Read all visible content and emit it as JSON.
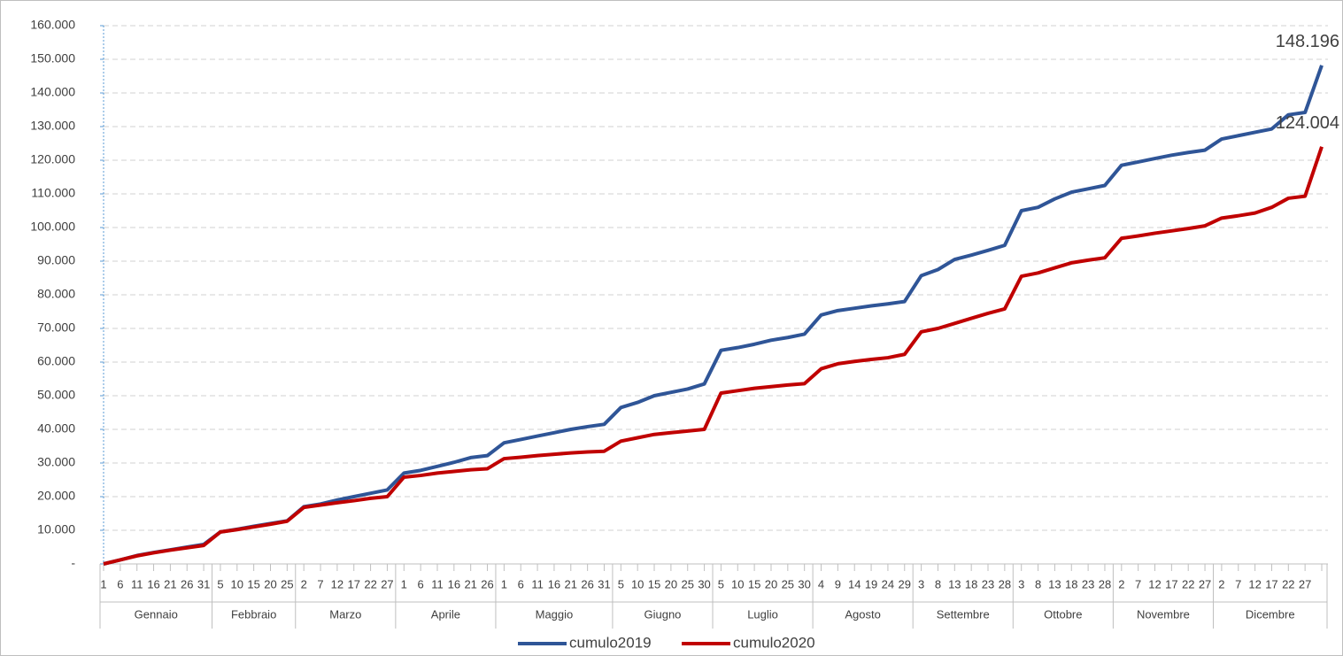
{
  "chart_data": {
    "type": "line",
    "months": [
      "Gennaio",
      "Febbraio",
      "Marzo",
      "Aprile",
      "Maggio",
      "Giugno",
      "Luglio",
      "Agosto",
      "Settembre",
      "Ottobre",
      "Novembre",
      "Dicembre"
    ],
    "categories": [
      "1",
      "6",
      "11",
      "16",
      "21",
      "26",
      "31",
      "5",
      "10",
      "15",
      "20",
      "25",
      "2",
      "7",
      "12",
      "17",
      "22",
      "27",
      "1",
      "6",
      "11",
      "16",
      "21",
      "26",
      "1",
      "6",
      "11",
      "16",
      "21",
      "26",
      "31",
      "5",
      "10",
      "15",
      "20",
      "25",
      "30",
      "5",
      "10",
      "15",
      "20",
      "25",
      "30",
      "4",
      "9",
      "14",
      "19",
      "24",
      "29",
      "3",
      "8",
      "13",
      "18",
      "23",
      "28",
      "3",
      "8",
      "13",
      "18",
      "23",
      "28",
      "2",
      "7",
      "12",
      "17",
      "22",
      "27",
      "2",
      "7",
      "12",
      "17",
      "22",
      "27",
      null
    ],
    "series": [
      {
        "name": "cumulo2019",
        "color": "#2f5597",
        "values": [
          0,
          1200,
          2500,
          3400,
          4200,
          5000,
          5800,
          9500,
          10300,
          11200,
          12000,
          12800,
          17000,
          17800,
          19000,
          20000,
          21000,
          22000,
          27000,
          27800,
          29000,
          30200,
          31600,
          32200,
          36000,
          37000,
          38000,
          39000,
          40000,
          40800,
          41500,
          46500,
          48000,
          50000,
          51000,
          52000,
          53500,
          63500,
          64300,
          65300,
          66500,
          67300,
          68300,
          74000,
          75300,
          76000,
          76700,
          77300,
          78000,
          85700,
          87500,
          90500,
          91800,
          93200,
          94700,
          105000,
          106000,
          108500,
          110500,
          111500,
          112500,
          118500,
          119500,
          120500,
          121500,
          122300,
          123000,
          126300,
          127300,
          128300,
          129300,
          133500,
          134200,
          148196
        ],
        "value_labels": [
          null,
          null,
          null,
          null,
          null,
          null,
          null,
          null,
          null,
          null,
          null,
          null,
          null,
          null,
          null,
          null,
          null,
          null,
          null,
          null,
          null,
          null,
          null,
          null,
          null,
          null,
          null,
          null,
          null,
          null,
          null,
          null,
          null,
          null,
          null,
          null,
          null,
          null,
          null,
          null,
          null,
          null,
          null,
          null,
          null,
          null,
          null,
          null,
          null,
          null,
          null,
          null,
          null,
          null,
          null,
          null,
          null,
          null,
          null,
          null,
          null,
          null,
          null,
          null,
          null,
          null,
          null,
          null,
          null,
          null,
          null,
          null,
          null,
          "148.196"
        ]
      },
      {
        "name": "cumulo2020",
        "color": "#c00000",
        "values": [
          0,
          1200,
          2400,
          3300,
          4100,
          4800,
          5500,
          9500,
          10200,
          11000,
          11800,
          12700,
          16800,
          17500,
          18200,
          18800,
          19500,
          20000,
          25800,
          26300,
          27000,
          27500,
          28000,
          28300,
          31300,
          31700,
          32200,
          32600,
          33000,
          33300,
          33500,
          36500,
          37500,
          38500,
          39000,
          39500,
          40000,
          50800,
          51500,
          52200,
          52700,
          53200,
          53600,
          58000,
          59500,
          60200,
          60800,
          61300,
          62300,
          69000,
          70000,
          71500,
          73000,
          74500,
          75800,
          85500,
          86500,
          88000,
          89500,
          90300,
          91000,
          96800,
          97500,
          98300,
          99000,
          99700,
          100500,
          102800,
          103500,
          104300,
          106000,
          108700,
          109300,
          124004
        ],
        "value_labels": [
          null,
          null,
          null,
          null,
          null,
          null,
          null,
          null,
          null,
          null,
          null,
          null,
          null,
          null,
          null,
          null,
          null,
          null,
          null,
          null,
          null,
          null,
          null,
          null,
          null,
          null,
          null,
          null,
          null,
          null,
          null,
          null,
          null,
          null,
          null,
          null,
          null,
          null,
          null,
          null,
          null,
          null,
          null,
          null,
          null,
          null,
          null,
          null,
          null,
          null,
          null,
          null,
          null,
          null,
          null,
          null,
          null,
          null,
          null,
          null,
          null,
          null,
          null,
          null,
          null,
          null,
          null,
          null,
          null,
          null,
          null,
          null,
          null,
          "124.004"
        ]
      }
    ],
    "ylim": [
      0,
      160000
    ],
    "yticks": [
      {
        "value": 0,
        "label": "-"
      },
      {
        "value": 10000,
        "label": "10.000"
      },
      {
        "value": 20000,
        "label": "20.000"
      },
      {
        "value": 30000,
        "label": "30.000"
      },
      {
        "value": 40000,
        "label": "40.000"
      },
      {
        "value": 50000,
        "label": "50.000"
      },
      {
        "value": 60000,
        "label": "60.000"
      },
      {
        "value": 70000,
        "label": "70.000"
      },
      {
        "value": 80000,
        "label": "80.000"
      },
      {
        "value": 90000,
        "label": "90.000"
      },
      {
        "value": 100000,
        "label": "100.000"
      },
      {
        "value": 110000,
        "label": "110.000"
      },
      {
        "value": 120000,
        "label": "120.000"
      },
      {
        "value": 130000,
        "label": "130.000"
      },
      {
        "value": 140000,
        "label": "140.000"
      },
      {
        "value": 150000,
        "label": "150.000"
      },
      {
        "value": 160000,
        "label": "160.000"
      }
    ],
    "grid": true
  }
}
